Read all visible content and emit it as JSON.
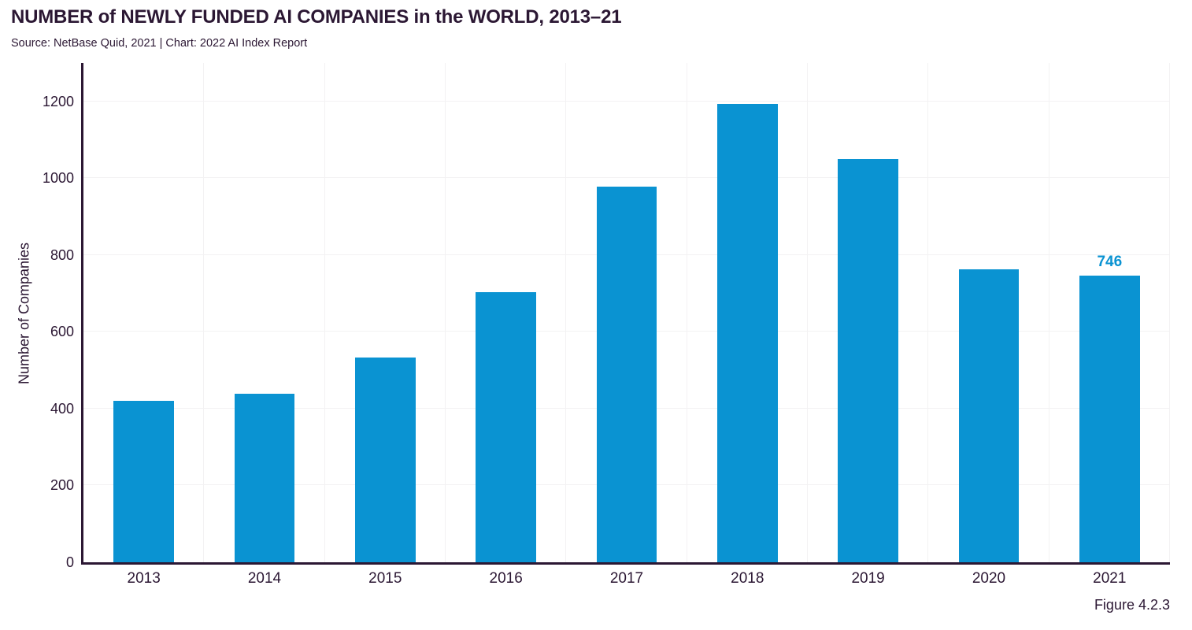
{
  "header": {
    "title": "NUMBER of NEWLY FUNDED AI COMPANIES in the WORLD, 2013–21",
    "subtitle": "Source: NetBase Quid, 2021 | Chart: 2022 AI Index Report"
  },
  "figure_label": "Figure 4.2.3",
  "colors": {
    "bar": "#0a93d2",
    "annotation": "#0a93d2",
    "text_dark": "#2b1733",
    "gridline": "#f3f2f3",
    "background": "#ffffff"
  },
  "chart_data": {
    "type": "bar",
    "title": "NUMBER of NEWLY FUNDED AI COMPANIES in the WORLD, 2013–21",
    "categories": [
      "2013",
      "2014",
      "2015",
      "2016",
      "2017",
      "2018",
      "2019",
      "2020",
      "2021"
    ],
    "values": [
      420,
      439,
      533,
      704,
      978,
      1194,
      1049,
      762,
      746
    ],
    "xlabel": "",
    "ylabel": "Number of Companies",
    "ylim": [
      0,
      1300
    ],
    "yticks": [
      0,
      200,
      400,
      600,
      800,
      1000,
      1200
    ],
    "grid": true,
    "legend": "none",
    "annotations": [
      {
        "category": "2021",
        "text": "746"
      }
    ]
  }
}
